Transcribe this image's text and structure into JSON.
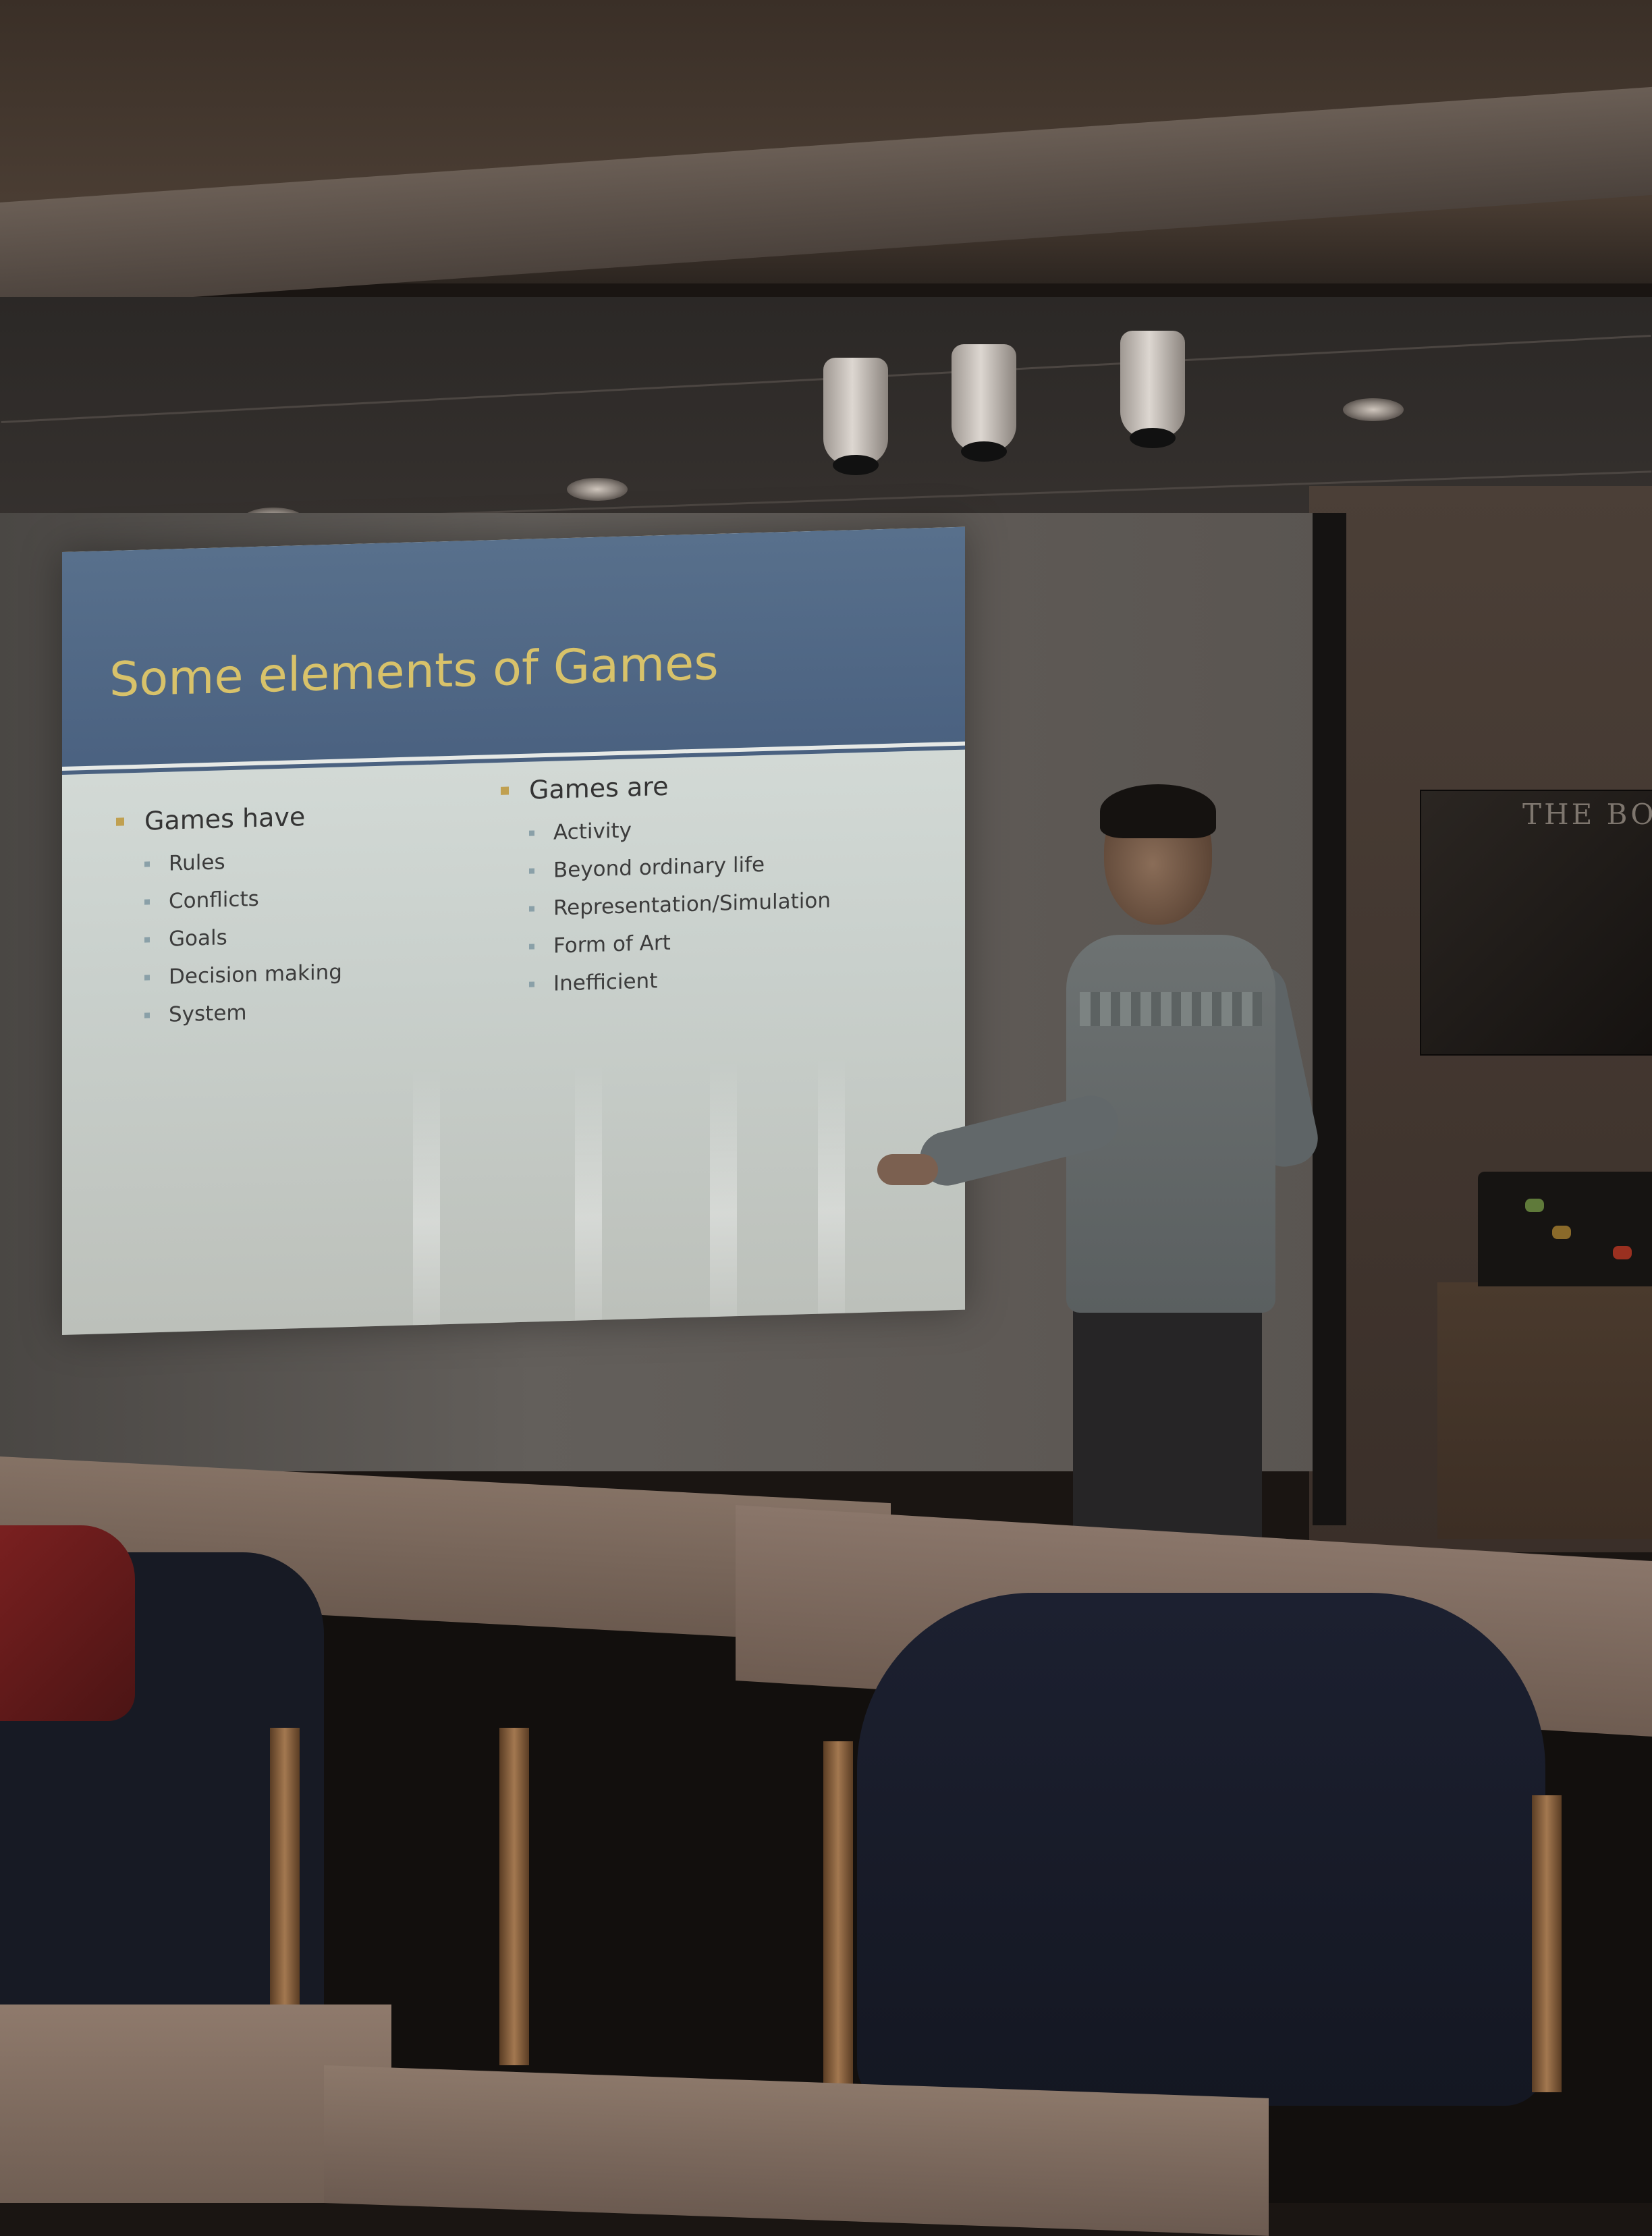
{
  "slide": {
    "title": "Some elements of Games",
    "left_column": {
      "heading": "Games have",
      "items": [
        "Rules",
        "Conflicts",
        "Goals",
        "Decision making",
        "System"
      ]
    },
    "right_column": {
      "heading": "Games are",
      "items": [
        "Activity",
        "Beyond ordinary life",
        "Representation/Simulation",
        "Form of Art",
        "Inefficient"
      ]
    }
  },
  "poster": {
    "text": "THE BOU"
  },
  "colors": {
    "slide_title": "#d8c26a",
    "slide_header_bar": "#4a6180",
    "slide_body": "#dce3df",
    "bullet_primary": "#c0a050",
    "bullet_secondary": "#8aa0a8"
  }
}
